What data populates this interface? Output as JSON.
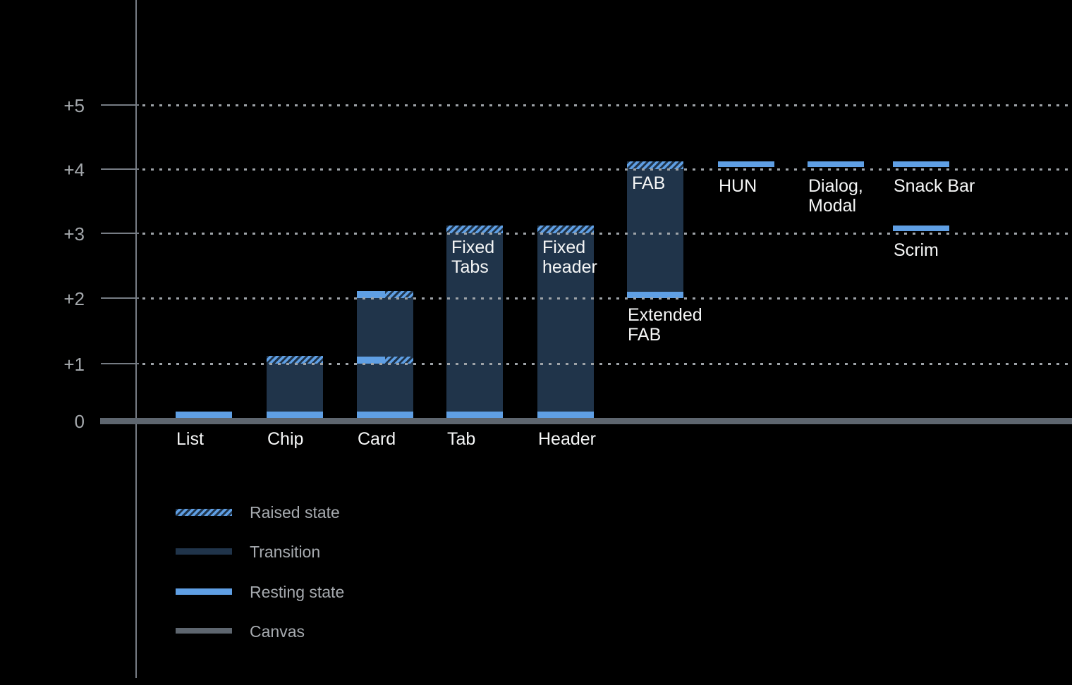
{
  "background": "#000000",
  "colors": {
    "resting_state": "#5F9FE4",
    "transition": "#20344A",
    "canvas": "#5E666F",
    "axis": "#767C84",
    "gridline": "#9EA3A8",
    "y_axis_label": "#A4A8AC",
    "component_label": "#F5F6F6",
    "legend_text": "#A6AAAF"
  },
  "chart_data": {
    "type": "bar",
    "subtype": "material-elevation-diagram",
    "title": "",
    "xlabel": "",
    "ylabel": "",
    "ylim": [
      0,
      5
    ],
    "grid": "horizontal-dotted",
    "legend_position": "bottom-left",
    "y_axis": [
      {
        "label": "+5",
        "level": 5
      },
      {
        "label": "+4",
        "level": 4
      },
      {
        "label": "+3",
        "level": 3
      },
      {
        "label": "+2",
        "level": 2
      },
      {
        "label": "+1",
        "level": 1
      },
      {
        "label": "0",
        "level": 0
      }
    ],
    "components": [
      {
        "name": "List",
        "slot": 0,
        "axis_label": "List",
        "segments": [
          {
            "type": "resting",
            "at": 0
          }
        ]
      },
      {
        "name": "Chip",
        "slot": 1,
        "axis_label": "Chip",
        "segments": [
          {
            "type": "transition",
            "from": 0,
            "to": 1
          },
          {
            "type": "raised",
            "at": 1
          },
          {
            "type": "resting",
            "at": 0
          }
        ]
      },
      {
        "name": "Card",
        "slot": 2,
        "axis_label": "Card",
        "segments": [
          {
            "type": "transition",
            "from": 0,
            "to": 2
          },
          {
            "type": "split",
            "at": 2
          },
          {
            "type": "split",
            "at": 1
          },
          {
            "type": "resting",
            "at": 0
          }
        ]
      },
      {
        "name": "Tab",
        "slot": 3,
        "axis_label": "Tab",
        "top_label": {
          "lines": [
            "Fixed",
            "Tabs"
          ],
          "at": 3
        },
        "segments": [
          {
            "type": "transition",
            "from": 0,
            "to": 3
          },
          {
            "type": "raised",
            "at": 3
          },
          {
            "type": "resting",
            "at": 0
          }
        ]
      },
      {
        "name": "Header",
        "slot": 4,
        "axis_label": "Header",
        "top_label": {
          "lines": [
            "Fixed",
            "header"
          ],
          "at": 3
        },
        "segments": [
          {
            "type": "transition",
            "from": 0,
            "to": 3
          },
          {
            "type": "raised",
            "at": 3
          },
          {
            "type": "resting",
            "at": 0
          }
        ]
      },
      {
        "name": "FAB",
        "slot": 5,
        "top_label": {
          "lines": [
            "FAB"
          ],
          "at": 4
        },
        "sub_label": {
          "lines": [
            "Extended",
            "FAB"
          ],
          "at": 2
        },
        "segments": [
          {
            "type": "transition",
            "from": 2,
            "to": 4
          },
          {
            "type": "raised",
            "at": 4
          },
          {
            "type": "resting",
            "at": 2
          }
        ]
      },
      {
        "name": "HUN",
        "slot": 6,
        "sub_label": {
          "lines": [
            "HUN"
          ],
          "at": 4
        },
        "segments": [
          {
            "type": "resting",
            "at": 4,
            "standalone": true
          }
        ]
      },
      {
        "name": "Dialog, Modal",
        "slot": 7,
        "sub_label": {
          "lines": [
            "Dialog,",
            "Modal"
          ],
          "at": 4
        },
        "segments": [
          {
            "type": "resting",
            "at": 4,
            "standalone": true
          }
        ]
      },
      {
        "name": "Snack Bar",
        "slot": 8,
        "sub_label": {
          "lines": [
            "Snack Bar"
          ],
          "at": 4
        },
        "segments": [
          {
            "type": "resting",
            "at": 4,
            "standalone": true
          }
        ]
      },
      {
        "name": "Scrim",
        "slot": 8,
        "sub_label": {
          "lines": [
            "Scrim"
          ],
          "at": 3
        },
        "segments": [
          {
            "type": "resting",
            "at": 3,
            "standalone": true
          }
        ]
      }
    ],
    "legend": [
      {
        "label": "Raised state",
        "swatch": "raised"
      },
      {
        "label": "Transition",
        "swatch": "transition"
      },
      {
        "label": "Resting state",
        "swatch": "resting"
      },
      {
        "label": "Canvas",
        "swatch": "canvas"
      }
    ]
  }
}
